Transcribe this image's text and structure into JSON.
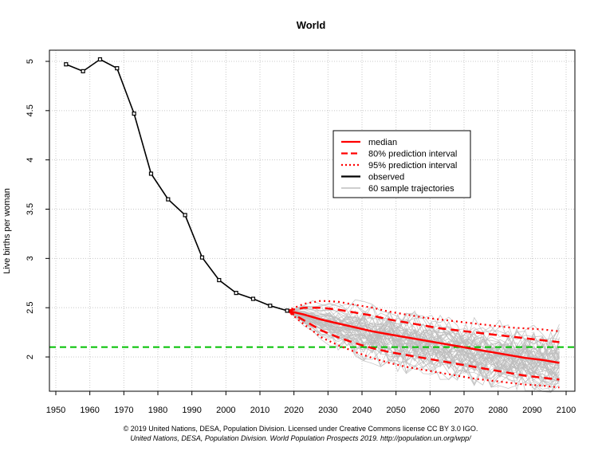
{
  "chart_data": {
    "type": "line",
    "title": "World",
    "xlabel": "",
    "ylabel": "Live births per woman",
    "xlim": [
      1950,
      2100
    ],
    "ylim": [
      1.65,
      5.1
    ],
    "x_ticks": [
      1950,
      1960,
      1970,
      1980,
      1990,
      2000,
      2010,
      2020,
      2030,
      2040,
      2050,
      2060,
      2070,
      2080,
      2090,
      2100
    ],
    "y_ticks": [
      2,
      2.5,
      3,
      3.5,
      4,
      4.5,
      5
    ],
    "y_tick_labels": [
      "2",
      "2.5",
      "3",
      "3.5",
      "4",
      "4.5",
      "5"
    ],
    "grid": true,
    "legend_position": "right",
    "reference_line": {
      "y": 2.1,
      "color": "#00c000",
      "style": "dashed"
    },
    "colors": {
      "median": "#ff0000",
      "observed": "#000000",
      "trajectories": "#bdbdbd",
      "reference": "#00c000"
    },
    "observed": {
      "x": [
        1953,
        1958,
        1963,
        1968,
        1973,
        1978,
        1983,
        1988,
        1993,
        1998,
        2003,
        2008,
        2013,
        2018
      ],
      "y": [
        4.97,
        4.9,
        5.02,
        4.93,
        4.47,
        3.86,
        3.6,
        3.44,
        3.01,
        2.78,
        2.65,
        2.59,
        2.52,
        2.47
      ]
    },
    "projections": {
      "x": [
        2018,
        2023,
        2028,
        2033,
        2038,
        2043,
        2048,
        2053,
        2058,
        2063,
        2068,
        2073,
        2078,
        2083,
        2088,
        2093,
        2098
      ],
      "median": [
        2.47,
        2.43,
        2.38,
        2.34,
        2.3,
        2.26,
        2.23,
        2.2,
        2.17,
        2.14,
        2.11,
        2.08,
        2.05,
        2.02,
        1.99,
        1.97,
        1.94
      ],
      "pi80_upper": [
        2.47,
        2.5,
        2.5,
        2.48,
        2.45,
        2.42,
        2.38,
        2.35,
        2.32,
        2.29,
        2.27,
        2.25,
        2.23,
        2.21,
        2.19,
        2.17,
        2.15
      ],
      "pi80_lower": [
        2.47,
        2.37,
        2.27,
        2.2,
        2.14,
        2.09,
        2.05,
        2.02,
        1.99,
        1.96,
        1.93,
        1.9,
        1.87,
        1.84,
        1.81,
        1.79,
        1.77
      ],
      "pi95_upper": [
        2.47,
        2.54,
        2.57,
        2.56,
        2.53,
        2.5,
        2.46,
        2.43,
        2.4,
        2.38,
        2.36,
        2.34,
        2.32,
        2.3,
        2.29,
        2.28,
        2.26
      ],
      "pi95_lower": [
        2.47,
        2.33,
        2.2,
        2.12,
        2.05,
        1.99,
        1.94,
        1.9,
        1.87,
        1.84,
        1.81,
        1.78,
        1.76,
        1.74,
        1.72,
        1.71,
        1.69
      ]
    },
    "legend": [
      {
        "label": "median",
        "color": "#ff0000",
        "style": "solid"
      },
      {
        "label": "80% prediction interval",
        "color": "#ff0000",
        "style": "dashed"
      },
      {
        "label": "95% prediction interval",
        "color": "#ff0000",
        "style": "dotted"
      },
      {
        "label": "observed",
        "color": "#000000",
        "style": "solid"
      },
      {
        "label": "60 sample trajectories",
        "color": "#bdbdbd",
        "style": "solid"
      }
    ]
  },
  "footer": {
    "line1": "© 2019 United Nations, DESA, Population Division. Licensed under Creative Commons license CC BY 3.0 IGO.",
    "line2": "United Nations, DESA, Population Division. World Population Prospects 2019. http://population.un.org/wpp/"
  }
}
